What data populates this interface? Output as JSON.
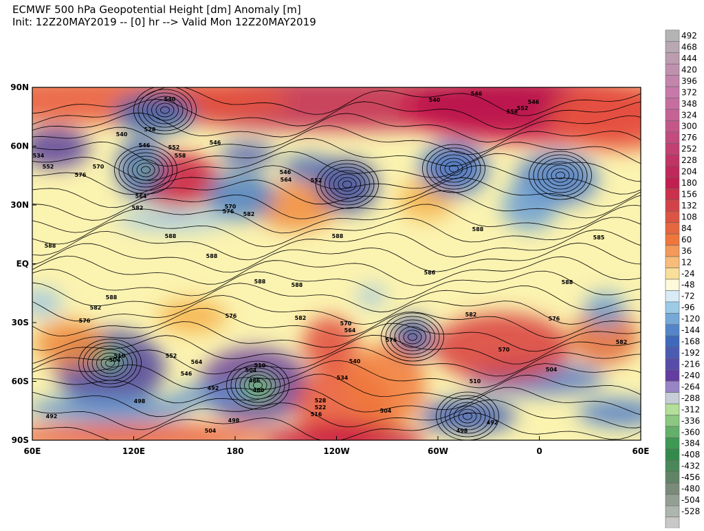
{
  "header": {
    "title": "ECMWF 500 hPa Geopotential Height [dm] Anomaly [m]",
    "subtitle": "Init: 12Z20MAY2019 -- [0] hr --> Valid Mon 12Z20MAY2019"
  },
  "map": {
    "lon_labels": [
      "60E",
      "120E",
      "180",
      "120W",
      "60W",
      "0",
      "60E"
    ],
    "lat_labels": [
      "90N",
      "60N",
      "30N",
      "EQ",
      "30S",
      "60S",
      "90S"
    ],
    "contour_labels": [
      546,
      540,
      546,
      552,
      558,
      540,
      528,
      540,
      546,
      552,
      558,
      546,
      570,
      576,
      552,
      534,
      546,
      564,
      552,
      564,
      582,
      570,
      576,
      582,
      588,
      588,
      588,
      588,
      588,
      588,
      588,
      586,
      588,
      588,
      582,
      576,
      576,
      582,
      570,
      564,
      576,
      582,
      576,
      582,
      570,
      552,
      564,
      510,
      504,
      510,
      504,
      486,
      480,
      492,
      498,
      534,
      540,
      510,
      504,
      528,
      522,
      516,
      498,
      504,
      492,
      504,
      498,
      492,
      546,
      585
    ]
  },
  "colorbar": {
    "levels": [
      492,
      468,
      444,
      420,
      396,
      372,
      348,
      324,
      300,
      276,
      252,
      228,
      204,
      180,
      156,
      132,
      108,
      84,
      60,
      36,
      12,
      -24,
      -48,
      -72,
      -96,
      -120,
      -144,
      -168,
      -192,
      -216,
      -240,
      -264,
      -288,
      -312,
      -336,
      -360,
      -384,
      -408,
      -432,
      -456,
      -480,
      -504,
      -528
    ]
  }
}
